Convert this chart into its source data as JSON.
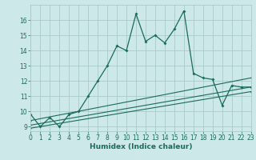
{
  "xlabel": "Humidex (Indice chaleur)",
  "bg_color": "#cce8e8",
  "grid_color": "#aacaca",
  "line_color": "#1a6b5a",
  "x_main": [
    0,
    1,
    2,
    3,
    4,
    5,
    6,
    7,
    8,
    9,
    10,
    11,
    12,
    13,
    14,
    15,
    16,
    17,
    18,
    19,
    20,
    21,
    22,
    23
  ],
  "y_main": [
    9.8,
    9.0,
    9.6,
    9.0,
    9.8,
    10.0,
    11.0,
    12.0,
    13.0,
    14.3,
    14.0,
    16.4,
    14.6,
    15.0,
    14.5,
    15.4,
    16.6,
    12.5,
    12.2,
    12.1,
    10.4,
    11.7,
    11.6,
    11.6
  ],
  "reg_lines": [
    {
      "x": [
        0,
        23
      ],
      "y": [
        9.4,
        12.2
      ]
    },
    {
      "x": [
        0,
        23
      ],
      "y": [
        9.1,
        11.6
      ]
    },
    {
      "x": [
        0,
        23
      ],
      "y": [
        8.9,
        11.3
      ]
    }
  ],
  "xlim": [
    0,
    23
  ],
  "ylim": [
    8.7,
    17.0
  ],
  "yticks": [
    9,
    10,
    11,
    12,
    13,
    14,
    15,
    16
  ],
  "xticks": [
    0,
    1,
    2,
    3,
    4,
    5,
    6,
    7,
    8,
    9,
    10,
    11,
    12,
    13,
    14,
    15,
    16,
    17,
    18,
    19,
    20,
    21,
    22,
    23
  ],
  "tick_fontsize": 5.5,
  "xlabel_fontsize": 6.5
}
